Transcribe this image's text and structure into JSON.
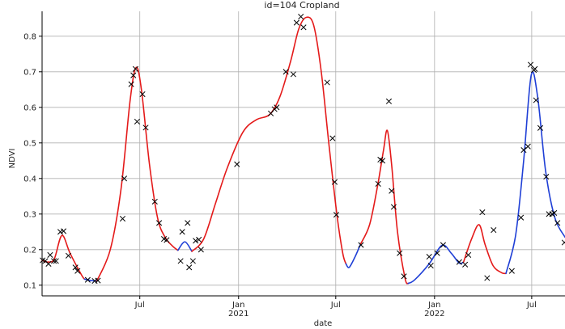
{
  "chart_data": {
    "type": "line",
    "title": "id=104 Cropland",
    "xlabel": "date",
    "ylabel": "NDVI",
    "xlim": [
      "2020-01-01",
      "2022-09-01"
    ],
    "ylim": [
      0.07,
      0.87
    ],
    "grid": true,
    "legend": "none",
    "x_ticks": [
      {
        "date": "2020-07-01",
        "label": "Jul",
        "sublabel": ""
      },
      {
        "date": "2021-01-01",
        "label": "Jan",
        "sublabel": "2021"
      },
      {
        "date": "2021-07-01",
        "label": "Jul",
        "sublabel": ""
      },
      {
        "date": "2022-01-01",
        "label": "Jan",
        "sublabel": "2022"
      },
      {
        "date": "2022-07-01",
        "label": "Jul",
        "sublabel": ""
      }
    ],
    "y_ticks": [
      0.1,
      0.2,
      0.3,
      0.4,
      0.5,
      0.6,
      0.7,
      0.8
    ],
    "colors": {
      "observed": "#000000",
      "fit_red": "#e41a1a",
      "fit_blue": "#1f3fd6",
      "grid": "#b0b0b0"
    },
    "observations": [
      {
        "x": "2020-01-02",
        "y": 0.17
      },
      {
        "x": "2020-01-07",
        "y": 0.168
      },
      {
        "x": "2020-01-13",
        "y": 0.16
      },
      {
        "x": "2020-01-16",
        "y": 0.185
      },
      {
        "x": "2020-01-23",
        "y": 0.168
      },
      {
        "x": "2020-01-27",
        "y": 0.168
      },
      {
        "x": "2020-02-04",
        "y": 0.25
      },
      {
        "x": "2020-02-10",
        "y": 0.252
      },
      {
        "x": "2020-02-19",
        "y": 0.183
      },
      {
        "x": "2020-03-03",
        "y": 0.15
      },
      {
        "x": "2020-03-07",
        "y": 0.14
      },
      {
        "x": "2020-03-26",
        "y": 0.115
      },
      {
        "x": "2020-04-08",
        "y": 0.112
      },
      {
        "x": "2020-04-14",
        "y": 0.113
      },
      {
        "x": "2020-05-30",
        "y": 0.287
      },
      {
        "x": "2020-06-02",
        "y": 0.4
      },
      {
        "x": "2020-06-15",
        "y": 0.665
      },
      {
        "x": "2020-06-19",
        "y": 0.69
      },
      {
        "x": "2020-06-23",
        "y": 0.708
      },
      {
        "x": "2020-06-26",
        "y": 0.56
      },
      {
        "x": "2020-07-06",
        "y": 0.637
      },
      {
        "x": "2020-07-12",
        "y": 0.543
      },
      {
        "x": "2020-07-29",
        "y": 0.335
      },
      {
        "x": "2020-08-06",
        "y": 0.275
      },
      {
        "x": "2020-08-15",
        "y": 0.23
      },
      {
        "x": "2020-08-20",
        "y": 0.227
      },
      {
        "x": "2020-09-15",
        "y": 0.168
      },
      {
        "x": "2020-09-18",
        "y": 0.25
      },
      {
        "x": "2020-09-28",
        "y": 0.275
      },
      {
        "x": "2020-10-01",
        "y": 0.15
      },
      {
        "x": "2020-10-08",
        "y": 0.168
      },
      {
        "x": "2020-10-13",
        "y": 0.225
      },
      {
        "x": "2020-10-19",
        "y": 0.228
      },
      {
        "x": "2020-10-23",
        "y": 0.2
      },
      {
        "x": "2020-12-29",
        "y": 0.44
      },
      {
        "x": "2021-03-02",
        "y": 0.583
      },
      {
        "x": "2021-03-09",
        "y": 0.595
      },
      {
        "x": "2021-03-13",
        "y": 0.6
      },
      {
        "x": "2021-03-30",
        "y": 0.7
      },
      {
        "x": "2021-04-13",
        "y": 0.693
      },
      {
        "x": "2021-04-19",
        "y": 0.838
      },
      {
        "x": "2021-04-27",
        "y": 0.855
      },
      {
        "x": "2021-05-02",
        "y": 0.825
      },
      {
        "x": "2021-06-15",
        "y": 0.67
      },
      {
        "x": "2021-06-25",
        "y": 0.513
      },
      {
        "x": "2021-06-29",
        "y": 0.39
      },
      {
        "x": "2021-07-02",
        "y": 0.298
      },
      {
        "x": "2021-08-17",
        "y": 0.213
      },
      {
        "x": "2021-09-18",
        "y": 0.385
      },
      {
        "x": "2021-09-22",
        "y": 0.453
      },
      {
        "x": "2021-09-26",
        "y": 0.45
      },
      {
        "x": "2021-10-08",
        "y": 0.617
      },
      {
        "x": "2021-10-13",
        "y": 0.365
      },
      {
        "x": "2021-10-17",
        "y": 0.32
      },
      {
        "x": "2021-10-28",
        "y": 0.19
      },
      {
        "x": "2021-11-05",
        "y": 0.125
      },
      {
        "x": "2021-12-22",
        "y": 0.18
      },
      {
        "x": "2021-12-25",
        "y": 0.155
      },
      {
        "x": "2022-01-06",
        "y": 0.19
      },
      {
        "x": "2022-01-17",
        "y": 0.213
      },
      {
        "x": "2022-02-16",
        "y": 0.165
      },
      {
        "x": "2022-02-27",
        "y": 0.158
      },
      {
        "x": "2022-03-05",
        "y": 0.185
      },
      {
        "x": "2022-03-31",
        "y": 0.305
      },
      {
        "x": "2022-04-09",
        "y": 0.12
      },
      {
        "x": "2022-04-21",
        "y": 0.255
      },
      {
        "x": "2022-05-25",
        "y": 0.14
      },
      {
        "x": "2022-06-11",
        "y": 0.29
      },
      {
        "x": "2022-06-16",
        "y": 0.48
      },
      {
        "x": "2022-06-24",
        "y": 0.49
      },
      {
        "x": "2022-06-29",
        "y": 0.72
      },
      {
        "x": "2022-07-05",
        "y": 0.705
      },
      {
        "x": "2022-07-07",
        "y": 0.708
      },
      {
        "x": "2022-07-09",
        "y": 0.62
      },
      {
        "x": "2022-07-17",
        "y": 0.542
      },
      {
        "x": "2022-07-28",
        "y": 0.405
      },
      {
        "x": "2022-08-02",
        "y": 0.3
      },
      {
        "x": "2022-08-08",
        "y": 0.3
      },
      {
        "x": "2022-08-12",
        "y": 0.303
      },
      {
        "x": "2022-08-18",
        "y": 0.275
      },
      {
        "x": "2022-08-31",
        "y": 0.22
      }
    ],
    "fit_segments": [
      {
        "color": "red",
        "points": [
          {
            "x": "2020-01-01",
            "y": 0.17
          },
          {
            "x": "2020-01-13",
            "y": 0.165
          },
          {
            "x": "2020-01-24",
            "y": 0.175
          },
          {
            "x": "2020-02-07",
            "y": 0.24
          },
          {
            "x": "2020-02-22",
            "y": 0.19
          },
          {
            "x": "2020-03-14",
            "y": 0.13
          },
          {
            "x": "2020-03-20",
            "y": 0.117
          }
        ]
      },
      {
        "color": "blue",
        "points": [
          {
            "x": "2020-03-20",
            "y": 0.117
          },
          {
            "x": "2020-04-01",
            "y": 0.113
          },
          {
            "x": "2020-04-12",
            "y": 0.112
          }
        ]
      },
      {
        "color": "red",
        "points": [
          {
            "x": "2020-04-12",
            "y": 0.112
          },
          {
            "x": "2020-05-07",
            "y": 0.2
          },
          {
            "x": "2020-05-27",
            "y": 0.37
          },
          {
            "x": "2020-06-13",
            "y": 0.62
          },
          {
            "x": "2020-06-24",
            "y": 0.712
          },
          {
            "x": "2020-07-04",
            "y": 0.65
          },
          {
            "x": "2020-07-19",
            "y": 0.44
          },
          {
            "x": "2020-08-03",
            "y": 0.29
          },
          {
            "x": "2020-08-17",
            "y": 0.235
          },
          {
            "x": "2020-08-31",
            "y": 0.21
          },
          {
            "x": "2020-09-10",
            "y": 0.198
          }
        ]
      },
      {
        "color": "blue",
        "points": [
          {
            "x": "2020-09-10",
            "y": 0.198
          },
          {
            "x": "2020-09-23",
            "y": 0.222
          },
          {
            "x": "2020-10-06",
            "y": 0.195
          }
        ]
      },
      {
        "color": "red",
        "points": [
          {
            "x": "2020-10-06",
            "y": 0.195
          },
          {
            "x": "2020-10-28",
            "y": 0.23
          },
          {
            "x": "2020-11-19",
            "y": 0.33
          },
          {
            "x": "2020-12-11",
            "y": 0.43
          },
          {
            "x": "2021-01-09",
            "y": 0.53
          },
          {
            "x": "2021-02-03",
            "y": 0.565
          },
          {
            "x": "2021-02-28",
            "y": 0.58
          },
          {
            "x": "2021-03-19",
            "y": 0.63
          },
          {
            "x": "2021-04-08",
            "y": 0.73
          },
          {
            "x": "2021-04-23",
            "y": 0.82
          },
          {
            "x": "2021-05-07",
            "y": 0.853
          },
          {
            "x": "2021-05-21",
            "y": 0.83
          },
          {
            "x": "2021-06-04",
            "y": 0.7
          },
          {
            "x": "2021-06-18",
            "y": 0.5
          },
          {
            "x": "2021-07-03",
            "y": 0.3
          },
          {
            "x": "2021-07-14",
            "y": 0.19
          },
          {
            "x": "2021-07-20",
            "y": 0.16
          }
        ]
      },
      {
        "color": "blue",
        "points": [
          {
            "x": "2021-07-20",
            "y": 0.16
          },
          {
            "x": "2021-07-26",
            "y": 0.15
          },
          {
            "x": "2021-08-06",
            "y": 0.18
          },
          {
            "x": "2021-08-16",
            "y": 0.215
          }
        ]
      },
      {
        "color": "red",
        "points": [
          {
            "x": "2021-08-16",
            "y": 0.215
          },
          {
            "x": "2021-09-02",
            "y": 0.27
          },
          {
            "x": "2021-09-17",
            "y": 0.38
          },
          {
            "x": "2021-09-28",
            "y": 0.48
          },
          {
            "x": "2021-10-05",
            "y": 0.535
          },
          {
            "x": "2021-10-13",
            "y": 0.44
          },
          {
            "x": "2021-10-24",
            "y": 0.25
          },
          {
            "x": "2021-11-07",
            "y": 0.12
          },
          {
            "x": "2021-11-13",
            "y": 0.105
          }
        ]
      },
      {
        "color": "blue",
        "points": [
          {
            "x": "2021-11-13",
            "y": 0.105
          },
          {
            "x": "2021-11-25",
            "y": 0.115
          },
          {
            "x": "2021-12-22",
            "y": 0.16
          },
          {
            "x": "2022-01-15",
            "y": 0.212
          },
          {
            "x": "2022-02-01",
            "y": 0.19
          },
          {
            "x": "2022-02-16",
            "y": 0.162
          },
          {
            "x": "2022-02-24",
            "y": 0.165
          }
        ]
      },
      {
        "color": "red",
        "points": [
          {
            "x": "2022-02-24",
            "y": 0.165
          },
          {
            "x": "2022-03-11",
            "y": 0.23
          },
          {
            "x": "2022-03-25",
            "y": 0.27
          },
          {
            "x": "2022-04-05",
            "y": 0.215
          },
          {
            "x": "2022-04-20",
            "y": 0.155
          },
          {
            "x": "2022-05-06",
            "y": 0.135
          },
          {
            "x": "2022-05-14",
            "y": 0.133
          }
        ]
      },
      {
        "color": "blue",
        "points": [
          {
            "x": "2022-05-14",
            "y": 0.133
          },
          {
            "x": "2022-06-01",
            "y": 0.24
          },
          {
            "x": "2022-06-16",
            "y": 0.45
          },
          {
            "x": "2022-06-30",
            "y": 0.69
          },
          {
            "x": "2022-07-12",
            "y": 0.63
          },
          {
            "x": "2022-07-27",
            "y": 0.42
          },
          {
            "x": "2022-08-13",
            "y": 0.29
          },
          {
            "x": "2022-09-01",
            "y": 0.235
          }
        ]
      }
    ]
  }
}
